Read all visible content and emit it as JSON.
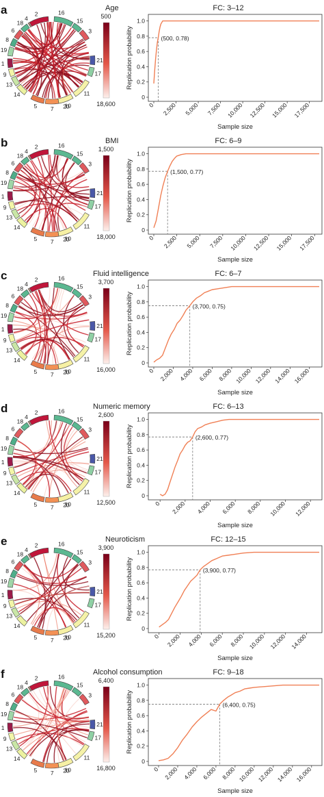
{
  "colors": {
    "curve": "#f07f54",
    "link_dark": "#8f0f1e",
    "link_light": "#f6c6bc",
    "colorbar_top": "#7a0019",
    "colorbar_bottom": "#fdf0ec",
    "segments": {
      "2": "#c0163a",
      "16": "#5bb891",
      "15": "#5bb891",
      "3": "#e05a5e",
      "18": "#5bb891",
      "6": "#e05a5e",
      "4": "#f08a52",
      "8": "#4fae8a",
      "19": "#9fd6a8",
      "1": "#9b1b49",
      "9": "#f3f6a8",
      "13": "#c9e6a6",
      "14": "#ecf2a0",
      "5": "#e87b4b",
      "7": "#f39155",
      "20": "#3d62b0",
      "10": "#f6f0a4",
      "11": "#f5f2a8",
      "17": "#8fd0a4",
      "21": "#4a58a8"
    }
  },
  "chart_data": [
    {
      "type": "line",
      "panel": "a",
      "trait": "Age",
      "fc": "FC: 3–12",
      "colorbar_labels": [
        "500",
        "18,600"
      ],
      "ylabel": "Replication probability",
      "xlabel": "Sample size",
      "xlim": [
        0,
        18600
      ],
      "ylim": [
        0,
        1.05
      ],
      "xticks": [
        0,
        2500,
        5000,
        7500,
        10000,
        12500,
        15000,
        17500
      ],
      "xtick_labels": [
        "0",
        "2,500",
        "5,000",
        "7,500",
        "10,000",
        "12,500",
        "15,000",
        "17,500"
      ],
      "yticks": [
        0,
        0.2,
        0.4,
        0.6,
        0.8,
        1.0
      ],
      "ytick_labels": [
        "0",
        "0.2",
        "0.4",
        "0.6",
        "0.8",
        "1.0"
      ],
      "annotation": {
        "x": 500,
        "y": 0.78,
        "label": "(500, 0.78)"
      },
      "series": [
        {
          "x": [
            0,
            100,
            200,
            300,
            400,
            500,
            600,
            700,
            800,
            900,
            1000,
            1200,
            18600
          ],
          "y": [
            0.18,
            0.35,
            0.5,
            0.62,
            0.72,
            0.78,
            0.86,
            0.92,
            0.96,
            0.98,
            1.0,
            1.0,
            1.0
          ]
        }
      ]
    },
    {
      "type": "line",
      "panel": "b",
      "trait": "BMI",
      "fc": "FC: 6–9",
      "colorbar_labels": [
        "1,500",
        "18,000"
      ],
      "ylabel": "Replication probability",
      "xlabel": "Sample size",
      "xlim": [
        0,
        18000
      ],
      "ylim": [
        0,
        1.05
      ],
      "xticks": [
        0,
        2500,
        5000,
        7500,
        10000,
        12500,
        15000,
        17500
      ],
      "xtick_labels": [
        "0",
        "2,500",
        "5,000",
        "7,500",
        "10,000",
        "12,500",
        "15,000",
        "17,500"
      ],
      "yticks": [
        0,
        0.2,
        0.4,
        0.6,
        0.8,
        1.0
      ],
      "ytick_labels": [
        "0",
        "0.2",
        "0.4",
        "0.6",
        "0.8",
        "1.0"
      ],
      "annotation": {
        "x": 1500,
        "y": 0.77,
        "label": "(1,500, 0.77)"
      },
      "series": [
        {
          "x": [
            0,
            250,
            500,
            750,
            1000,
            1250,
            1500,
            1750,
            2000,
            2250,
            2500,
            2750,
            3000,
            3500,
            4000,
            18000
          ],
          "y": [
            0.03,
            0.12,
            0.28,
            0.45,
            0.58,
            0.69,
            0.77,
            0.84,
            0.9,
            0.94,
            0.97,
            0.98,
            0.99,
            1.0,
            1.0,
            1.0
          ]
        }
      ]
    },
    {
      "type": "line",
      "panel": "c",
      "trait": "Fluid intelligence",
      "fc": "FC: 6–7",
      "colorbar_labels": [
        "3,700",
        "16,000"
      ],
      "ylabel": "Replication probability",
      "xlabel": "Sample size",
      "xlim": [
        0,
        17000
      ],
      "ylim": [
        0,
        1.05
      ],
      "xticks": [
        0,
        2000,
        4000,
        6000,
        8000,
        10000,
        12000,
        14000,
        16000
      ],
      "xtick_labels": [
        "0",
        "2,000",
        "4,000",
        "6,000",
        "8,000",
        "10,000",
        "12,000",
        "14,000",
        "16,000"
      ],
      "yticks": [
        0,
        0.2,
        0.4,
        0.6,
        0.8,
        1.0
      ],
      "ytick_labels": [
        "0",
        "0.2",
        "0.4",
        "0.6",
        "0.8",
        "1.0"
      ],
      "annotation": {
        "x": 3700,
        "y": 0.75,
        "label": "(3,700, 0.75)"
      },
      "series": [
        {
          "x": [
            0,
            300,
            600,
            900,
            1200,
            1500,
            1800,
            2100,
            2400,
            2700,
            3000,
            3300,
            3700,
            4000,
            4400,
            4800,
            5200,
            5600,
            6000,
            6500,
            7000,
            7500,
            8000,
            9000,
            10000,
            17000
          ],
          "y": [
            0.01,
            0.04,
            0.06,
            0.1,
            0.2,
            0.3,
            0.38,
            0.44,
            0.52,
            0.56,
            0.62,
            0.69,
            0.75,
            0.8,
            0.85,
            0.88,
            0.92,
            0.94,
            0.96,
            0.97,
            0.98,
            0.99,
            1.0,
            1.0,
            1.0,
            1.0
          ]
        }
      ]
    },
    {
      "type": "line",
      "panel": "d",
      "trait": "Numeric memory",
      "fc": "FC: 6–13",
      "colorbar_labels": [
        "2,600",
        "12,500"
      ],
      "ylabel": "Replication probability",
      "xlabel": "Sample size",
      "xlim": [
        -500,
        12700
      ],
      "ylim": [
        0,
        1.05
      ],
      "xticks": [
        0,
        2000,
        4000,
        6000,
        8000,
        10000,
        12000
      ],
      "xtick_labels": [
        "0",
        "2,000",
        "4,000",
        "6,000",
        "8,000",
        "10,000",
        "12,000"
      ],
      "yticks": [
        0,
        0.2,
        0.4,
        0.6,
        0.8,
        1.0
      ],
      "ytick_labels": [
        "0",
        "0.2",
        "0.4",
        "0.6",
        "0.8",
        "1.0"
      ],
      "annotation": {
        "x": 2600,
        "y": 0.77,
        "label": "(2,600, 0.77)"
      },
      "series": [
        {
          "x": [
            0,
            200,
            400,
            600,
            800,
            1000,
            1200,
            1400,
            1600,
            1800,
            2000,
            2200,
            2400,
            2600,
            2800,
            3000,
            3300,
            3600,
            4000,
            4500,
            5000,
            5500,
            6000,
            7000,
            12700
          ],
          "y": [
            0.02,
            0.0,
            0.02,
            0.08,
            0.18,
            0.28,
            0.38,
            0.46,
            0.55,
            0.6,
            0.66,
            0.7,
            0.72,
            0.77,
            0.84,
            0.88,
            0.9,
            0.93,
            0.95,
            0.97,
            0.99,
            1.0,
            1.0,
            1.0,
            1.0
          ]
        }
      ]
    },
    {
      "type": "line",
      "panel": "e",
      "trait": "Neuroticism",
      "fc": "FC: 12–15",
      "colorbar_labels": [
        "3,900",
        "15,200"
      ],
      "ylabel": "Replication probability",
      "xlabel": "Sample size",
      "xlim": [
        -500,
        15200
      ],
      "ylim": [
        0,
        1.05
      ],
      "xticks": [
        0,
        2000,
        4000,
        6000,
        8000,
        10000,
        12000,
        14000
      ],
      "xtick_labels": [
        "0",
        "2,000",
        "4,000",
        "6,000",
        "8,000",
        "10,000",
        "12,000",
        "14,000"
      ],
      "yticks": [
        0,
        0.2,
        0.4,
        0.6,
        0.8,
        1.0
      ],
      "ytick_labels": [
        "0",
        "0.2",
        "0.4",
        "0.6",
        "0.8",
        "1.0"
      ],
      "annotation": {
        "x": 3900,
        "y": 0.77,
        "label": "(3,900, 0.77)"
      },
      "series": [
        {
          "x": [
            0,
            300,
            600,
            900,
            1200,
            1500,
            1800,
            2100,
            2400,
            2700,
            3000,
            3300,
            3600,
            3900,
            4200,
            4600,
            5000,
            5500,
            6000,
            6500,
            7000,
            8000,
            9000,
            10000,
            15200
          ],
          "y": [
            0.02,
            0.05,
            0.08,
            0.12,
            0.2,
            0.28,
            0.35,
            0.42,
            0.5,
            0.56,
            0.62,
            0.66,
            0.7,
            0.77,
            0.81,
            0.85,
            0.89,
            0.92,
            0.95,
            0.96,
            0.97,
            0.99,
            1.0,
            1.0,
            1.0
          ]
        }
      ]
    },
    {
      "type": "line",
      "panel": "f",
      "trait": "Alcohol consumption",
      "fc": "FC: 9–18",
      "colorbar_labels": [
        "6,400",
        "16,800"
      ],
      "ylabel": "Replication probability",
      "xlabel": "Sample size",
      "xlim": [
        -500,
        16800
      ],
      "ylim": [
        0,
        1.05
      ],
      "xticks": [
        0,
        2000,
        4000,
        6000,
        8000,
        10000,
        12000,
        14000,
        16000
      ],
      "xtick_labels": [
        "0",
        "2,000",
        "4,000",
        "6,000",
        "8,000",
        "10,000",
        "12,000",
        "14,000",
        "16,000"
      ],
      "yticks": [
        0,
        0.2,
        0.4,
        0.6,
        0.8,
        1.0
      ],
      "ytick_labels": [
        "0",
        "0.2",
        "0.4",
        "0.6",
        "0.8",
        "1.0"
      ],
      "annotation": {
        "x": 6400,
        "y": 0.75,
        "label": "(6,400, 0.75)"
      },
      "series": [
        {
          "x": [
            0,
            500,
            1000,
            1500,
            2000,
            2500,
            3000,
            3500,
            4000,
            4500,
            5000,
            5500,
            6000,
            6400,
            6800,
            7200,
            7600,
            8000,
            8500,
            9000,
            9500,
            10000,
            11000,
            12000,
            13000,
            16800
          ],
          "y": [
            0.01,
            0.02,
            0.04,
            0.1,
            0.18,
            0.28,
            0.36,
            0.45,
            0.52,
            0.58,
            0.63,
            0.68,
            0.66,
            0.75,
            0.8,
            0.84,
            0.87,
            0.9,
            0.92,
            0.95,
            0.96,
            0.97,
            0.98,
            0.99,
            1.0,
            1.0
          ]
        }
      ]
    }
  ],
  "circos": {
    "segments_order": [
      "2",
      "16",
      "15",
      "3",
      "18",
      "6",
      "4",
      "8",
      "19",
      "1",
      "9",
      "13",
      "14",
      "5",
      "7",
      "20",
      "10",
      "11",
      "17",
      "21"
    ],
    "panels": [
      {
        "panel": "a",
        "link_count": 60,
        "intensity": 0.9
      },
      {
        "panel": "b",
        "link_count": 48,
        "intensity": 0.75
      },
      {
        "panel": "c",
        "link_count": 40,
        "intensity": 0.65
      },
      {
        "panel": "d",
        "link_count": 34,
        "intensity": 0.6
      },
      {
        "panel": "e",
        "link_count": 30,
        "intensity": 0.55
      },
      {
        "panel": "f",
        "link_count": 38,
        "intensity": 0.6
      }
    ]
  }
}
